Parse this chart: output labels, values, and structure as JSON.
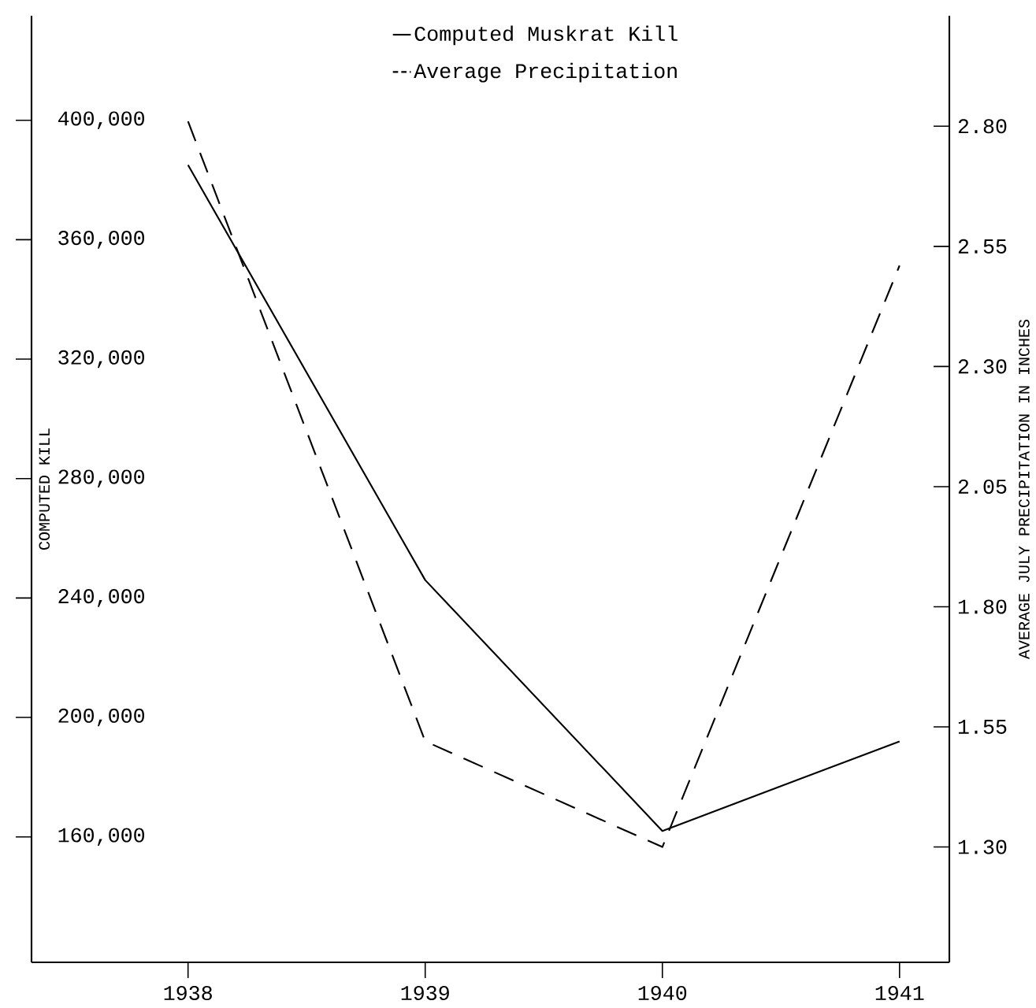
{
  "chart_data": {
    "type": "line",
    "ylabel": "COMPUTED KILL",
    "y2label": "AVERAGE JULY PRECIPITATION IN INCHES",
    "x": [
      1938,
      1939,
      1940,
      1941
    ],
    "xlim": [
      1937.34,
      1941.21
    ],
    "xticks": [
      1938,
      1939,
      1940,
      1941
    ],
    "ylim": [
      118000,
      435000
    ],
    "yticks": [
      {
        "value": 160000,
        "label": "160,000"
      },
      {
        "value": 200000,
        "label": "200,000"
      },
      {
        "value": 240000,
        "label": "240,000"
      },
      {
        "value": 280000,
        "label": "280,000"
      },
      {
        "value": 320000,
        "label": "320,000"
      },
      {
        "value": 360000,
        "label": "360,000"
      },
      {
        "value": 400000,
        "label": "400,000"
      }
    ],
    "y2lim": [
      1.06,
      3.03
    ],
    "y2ticks": [
      {
        "value": 1.3,
        "label": "1.30"
      },
      {
        "value": 1.55,
        "label": "1.55"
      },
      {
        "value": 1.8,
        "label": "1.80"
      },
      {
        "value": 2.05,
        "label": "2.05"
      },
      {
        "value": 2.3,
        "label": "2.30"
      },
      {
        "value": 2.55,
        "label": "2.55"
      },
      {
        "value": 2.8,
        "label": "2.80"
      }
    ],
    "legend": "top",
    "grid": false,
    "marker": "none",
    "series": [
      {
        "name": "Computed Muskrat Kill",
        "color": "#000000",
        "line_style": "solid",
        "values": [
          385000,
          246000,
          162000,
          192000
        ]
      },
      {
        "name": "Average Precipitation",
        "color": "#000000",
        "line_style": "dashed",
        "axis": "y2",
        "values": [
          2.81,
          1.52,
          1.3,
          2.51
        ]
      }
    ]
  }
}
